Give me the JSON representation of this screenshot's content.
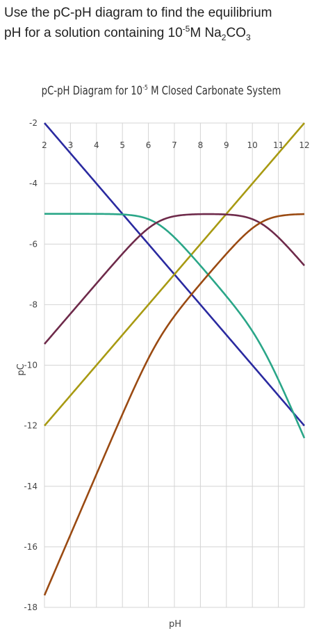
{
  "question": {
    "line1": "Use the pC-pH diagram to find the equilibrium",
    "line2_prefix": "pH for a solution containing 10",
    "line2_exp": "-5",
    "line2_mid": "M Na",
    "line2_sub1": "2",
    "line2_mid2": "CO",
    "line2_sub2": "3"
  },
  "chart_data": {
    "type": "line",
    "title_prefix": "pC-pH Diagram for 10",
    "title_exp": "-5",
    "title_suffix": " M Closed Carbonate System",
    "xlabel": "pH",
    "ylabel": "pC",
    "xlim": [
      2,
      12
    ],
    "ylim": [
      -18,
      -2
    ],
    "xticks": [
      2,
      3,
      4,
      5,
      6,
      7,
      8,
      9,
      10,
      11,
      12
    ],
    "yticks": [
      -2,
      -4,
      -6,
      -8,
      -10,
      -12,
      -14,
      -16,
      -18
    ],
    "grid": true,
    "ct_log": -5,
    "pka1": 6.3,
    "pka2": 10.3,
    "series": [
      {
        "key": "h",
        "color": "#2a2aa0",
        "x": [
          2,
          12
        ],
        "y": [
          -2,
          -12
        ]
      },
      {
        "key": "oh",
        "color": "#a89a12",
        "x": [
          2,
          12
        ],
        "y": [
          -12,
          -2
        ]
      },
      {
        "key": "h2co3",
        "color": "#2aa688",
        "x": [
          2,
          5,
          6,
          6.5,
          7,
          8,
          9,
          10,
          11,
          12
        ],
        "y": [
          -5,
          -5,
          -5.48,
          -5.9,
          -6.3,
          -7.3,
          -8.3,
          -9.3,
          -10.5,
          -12.5
        ]
      },
      {
        "key": "hco3",
        "color": "#6e2a4a",
        "x": [
          2,
          4,
          6,
          6.5,
          7,
          8,
          9,
          10,
          10.5,
          11,
          12
        ],
        "y": [
          -9.3,
          -7.3,
          -5.48,
          -5.2,
          -5.08,
          -5,
          -5.05,
          -5.19,
          -5.35,
          -5.72,
          -6.8
        ]
      },
      {
        "key": "co3",
        "color": "#9a4a12",
        "x": [
          2,
          4,
          6,
          7,
          8,
          9,
          10,
          10.5,
          11,
          12
        ],
        "y": [
          -17.6,
          -14.6,
          -10.6,
          -8.6,
          -7.35,
          -6.35,
          -5.49,
          -5.24,
          -5.09,
          -5.0
        ]
      }
    ]
  }
}
